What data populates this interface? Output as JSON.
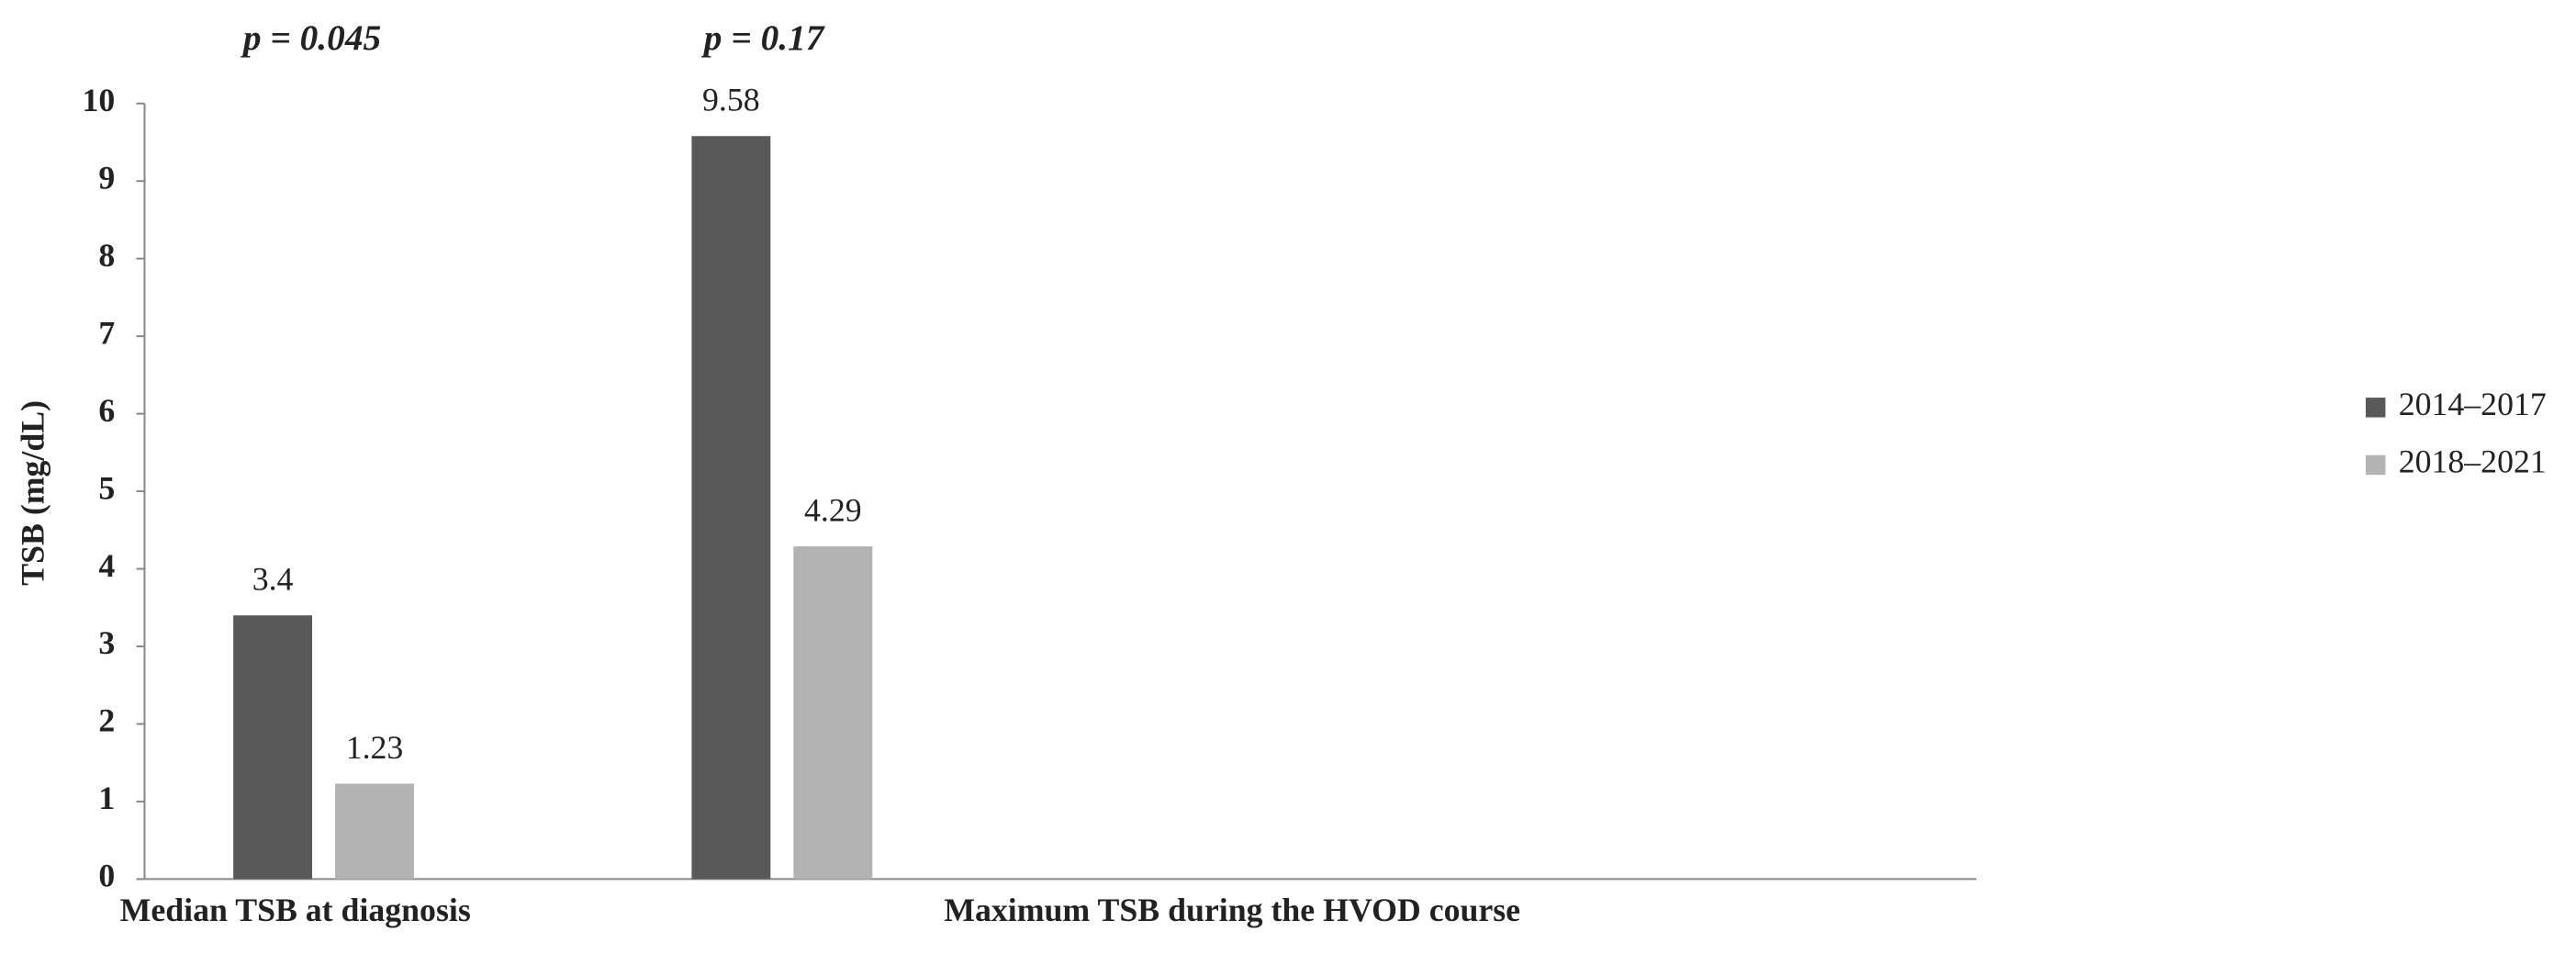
{
  "chart_data": {
    "type": "bar",
    "y_label": "TSB (mg/dL)",
    "annotations": [
      "p = 0.045",
      "p = 0.17"
    ],
    "categories": [
      "Median TSB at diagnosis",
      "Maximum TSB during the HVOD course"
    ],
    "series": [
      {
        "name": "2014–2017",
        "color": "#595959",
        "values": [
          3.4,
          9.58
        ]
      },
      {
        "name": "2018–2021",
        "color": "#b3b3b3",
        "values": [
          1.23,
          4.29
        ]
      }
    ],
    "ylim": [
      0,
      10
    ],
    "yticks": [
      0,
      1,
      2,
      3,
      4,
      5,
      6,
      7,
      8,
      9,
      10
    ],
    "grid": false,
    "legend": "right"
  }
}
